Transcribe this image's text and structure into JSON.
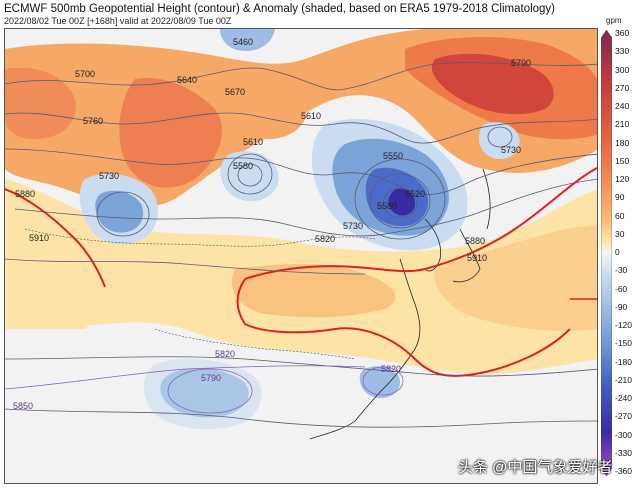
{
  "header": {
    "title": "ECMWF 500mb Geopotential Height (contour) & Anomaly (shaded, based on ERA5 1979-2018 Climatology)",
    "subtitle": "2022/08/02 Tue 00Z [+168h] valid at 2022/08/09 Tue 00Z"
  },
  "colorbar": {
    "unit": "gpm",
    "ticks": [
      "360",
      "330",
      "300",
      "270",
      "240",
      "210",
      "180",
      "150",
      "120",
      "90",
      "60",
      "30",
      "0",
      "-30",
      "-60",
      "-90",
      "-120",
      "-150",
      "-180",
      "-210",
      "-240",
      "-270",
      "-300",
      "-330",
      "-360"
    ],
    "colors": {
      "top": "#7b2a52",
      "strong_pos": "#c83a3a",
      "pos": "#ee7a4a",
      "weak_pos": "#f7b873",
      "light_pos": "#fde3a4",
      "neutral": "#f4f4f4",
      "light_neg": "#c9dcf0",
      "neg": "#7ba5d8",
      "strong_neg": "#3f5ec0",
      "deep_neg": "#3a2aa0",
      "bottom": "#b04ad8"
    }
  },
  "map": {
    "contour_labels": [
      "5460",
      "5700",
      "5640",
      "5670",
      "5760",
      "5610",
      "5580",
      "5610",
      "5550",
      "5520",
      "5580",
      "5790",
      "5730",
      "5730",
      "5880",
      "5910",
      "5730",
      "5820",
      "5880",
      "5910",
      "5820",
      "5790",
      "5820",
      "5850"
    ]
  },
  "watermark": "头条 @中国气象爱好者"
}
